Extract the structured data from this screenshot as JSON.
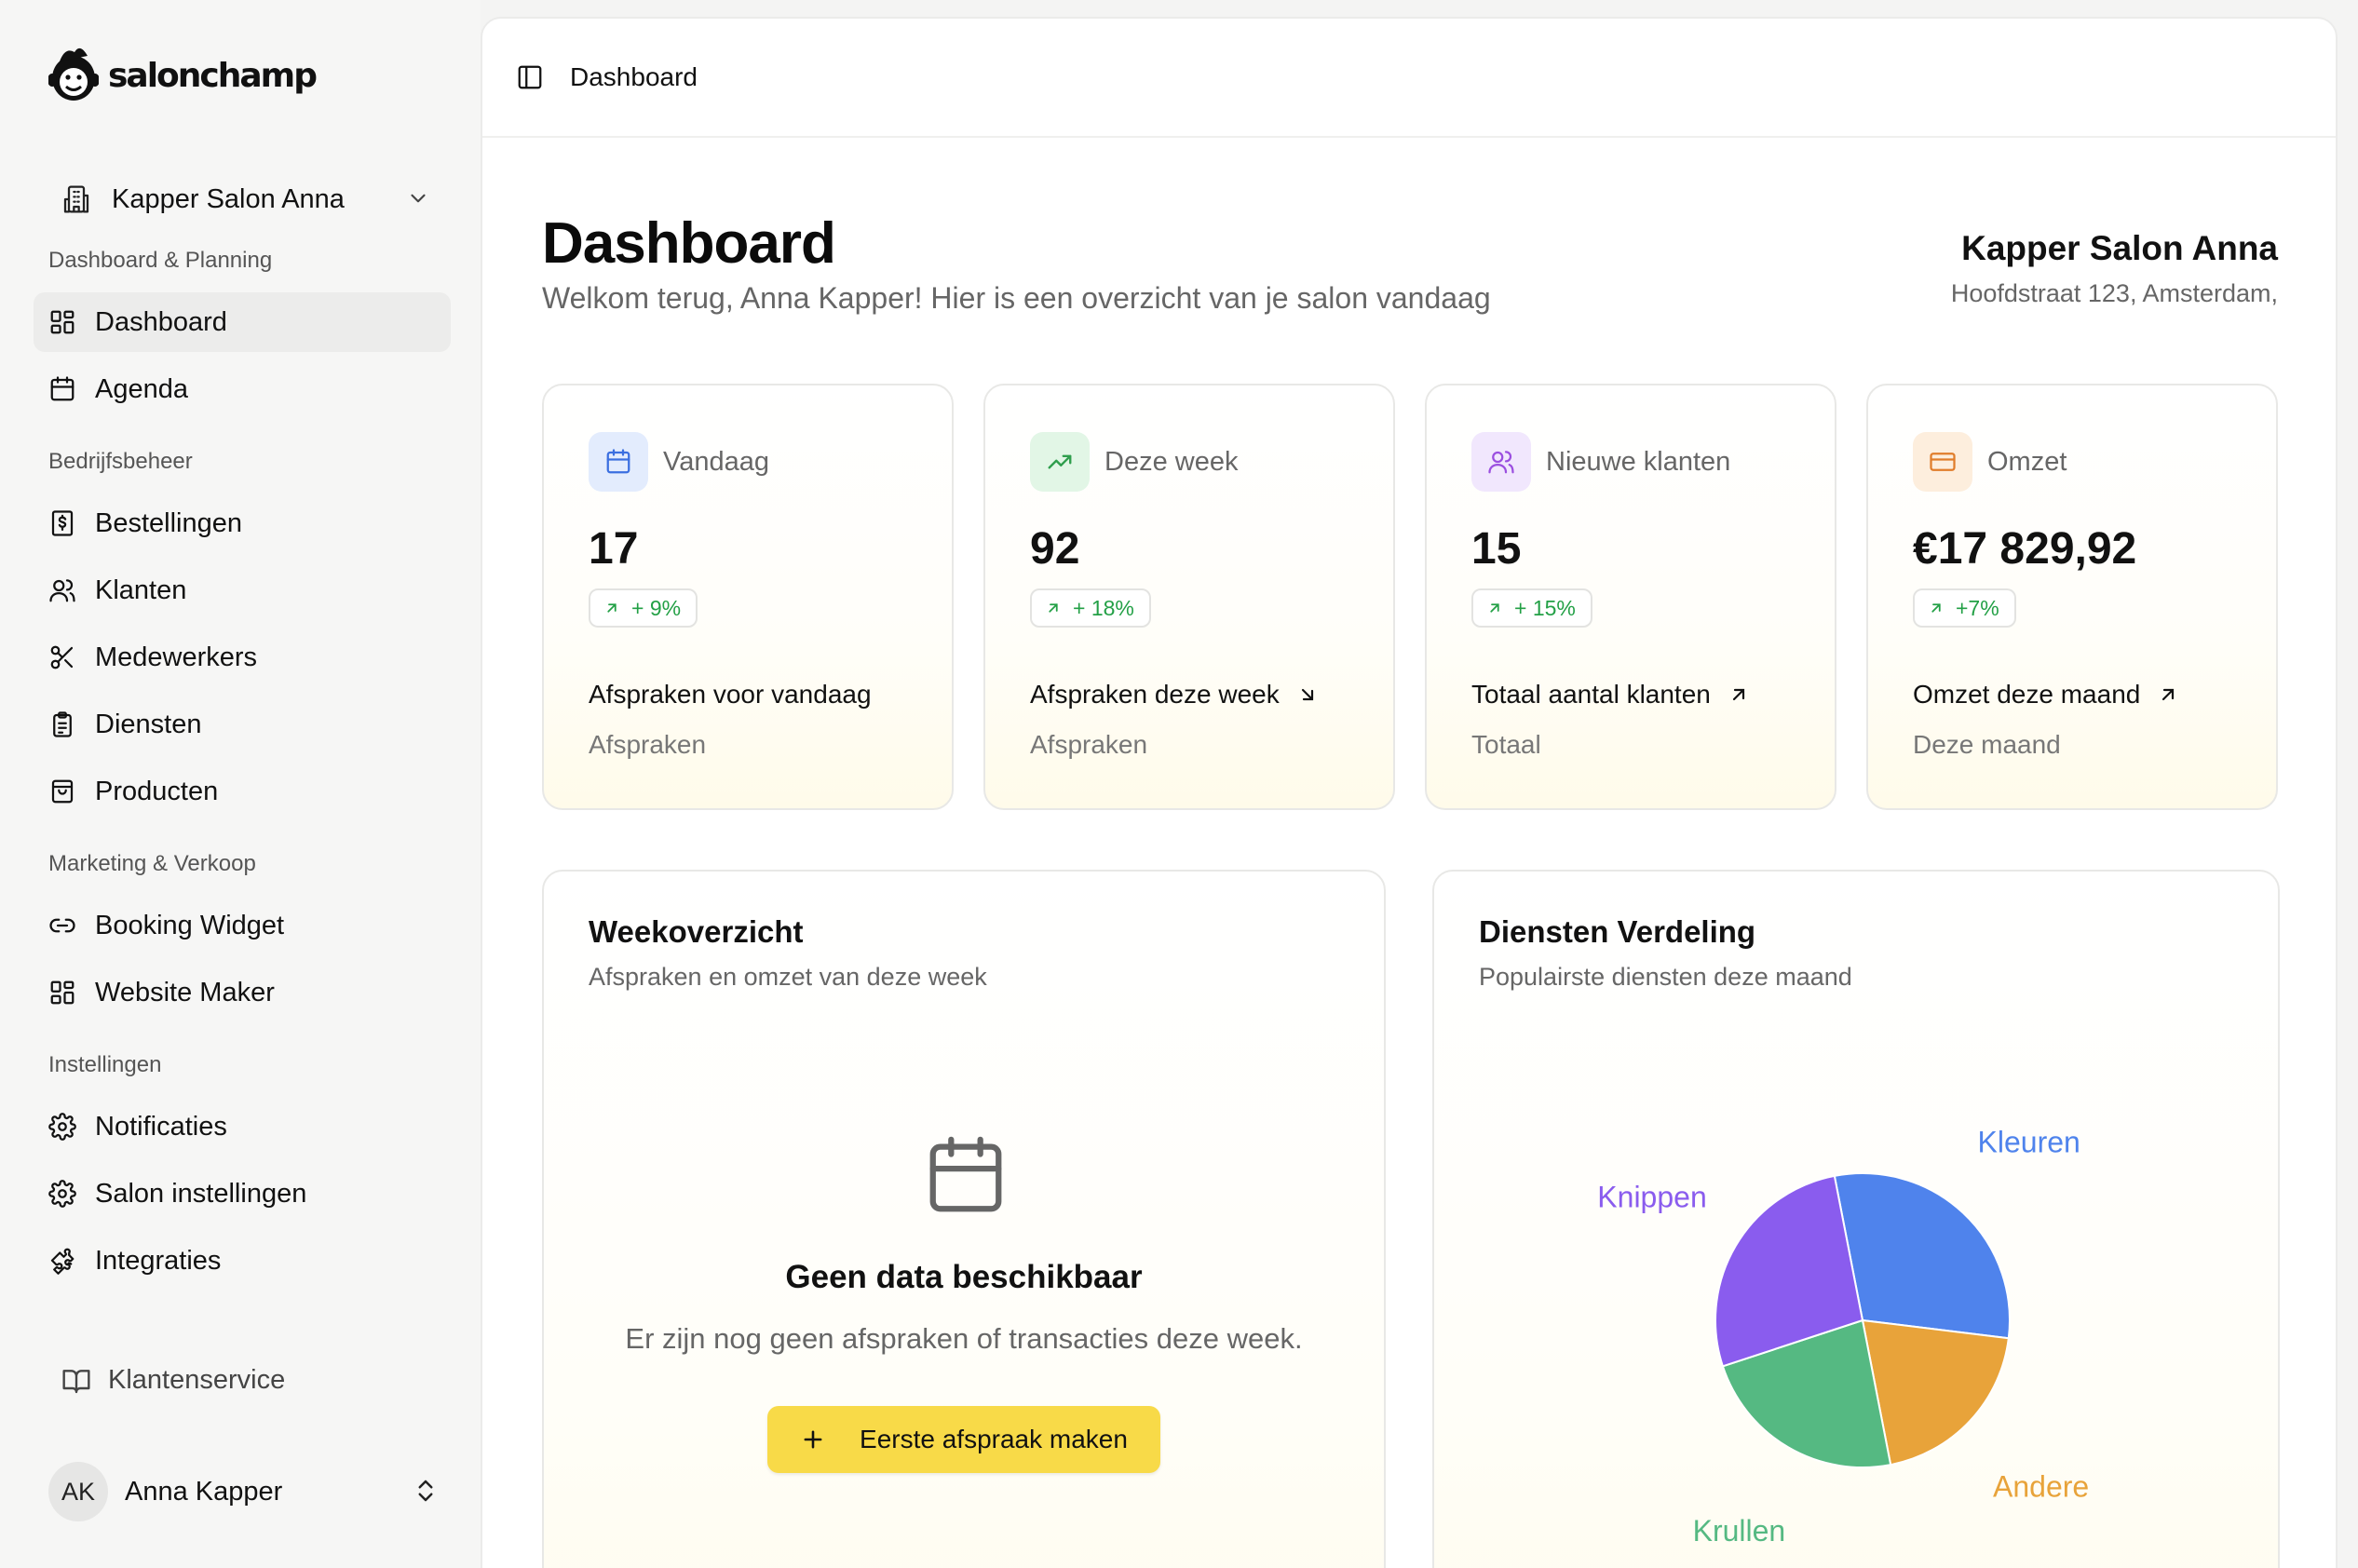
{
  "brand": {
    "name": "salonchamp"
  },
  "sidebar": {
    "salon_switcher": "Kapper Salon Anna",
    "sections": {
      "planning": "Dashboard & Planning",
      "business": "Bedrijfsbeheer",
      "marketing": "Marketing & Verkoop",
      "settings": "Instellingen"
    },
    "items": {
      "dashboard": "Dashboard",
      "agenda": "Agenda",
      "bestellingen": "Bestellingen",
      "klanten": "Klanten",
      "medewerkers": "Medewerkers",
      "diensten": "Diensten",
      "producten": "Producten",
      "booking_widget": "Booking Widget",
      "website_maker": "Website Maker",
      "notificaties": "Notificaties",
      "salon_instellingen": "Salon instellingen",
      "integraties": "Integraties"
    },
    "support": "Klantenservice",
    "user": {
      "initials": "AK",
      "name": "Anna Kapper"
    }
  },
  "topbar": {
    "breadcrumb": "Dashboard"
  },
  "header": {
    "title": "Dashboard",
    "subtitle": "Welkom terug, Anna Kapper! Hier is een overzicht van je salon vandaag",
    "salon_name": "Kapper Salon Anna",
    "salon_address": "Hoofdstraat 123, Amsterdam,"
  },
  "stats": [
    {
      "label": "Vandaag",
      "value": "17",
      "change": "+ 9%",
      "title": "Afspraken voor vandaag",
      "foot": "Afspraken",
      "icon": "calendar-icon",
      "icon_bg": "#e3ecfd",
      "icon_color": "#3b6fe0"
    },
    {
      "label": "Deze week",
      "value": "92",
      "change": "+ 18%",
      "title": "Afspraken deze week",
      "foot": "Afspraken",
      "icon": "trending-up-icon",
      "icon_bg": "#e2f6e6",
      "icon_color": "#2f9e4d"
    },
    {
      "label": "Nieuwe klanten",
      "value": "15",
      "change": "+ 15%",
      "title": "Totaal aantal klanten",
      "foot": "Totaal",
      "icon": "users-icon",
      "icon_bg": "#f1e7fd",
      "icon_color": "#9b4fe0"
    },
    {
      "label": "Omzet",
      "value": "€17 829,92",
      "change": "+7%",
      "title": "Omzet deze maand",
      "foot": "Deze maand",
      "icon": "credit-card-icon",
      "icon_bg": "#fdeedd",
      "icon_color": "#e07d2b"
    }
  ],
  "week_panel": {
    "title": "Weekoverzicht",
    "subtitle": "Afspraken en omzet van deze week",
    "empty_title": "Geen data beschikbaar",
    "empty_text": "Er zijn nog geen afspraken of transacties deze week.",
    "cta": "Eerste afspraak maken"
  },
  "services_panel": {
    "title": "Diensten Verdeling",
    "subtitle": "Populairste diensten deze maand"
  },
  "chart_data": {
    "type": "pie",
    "title": "Diensten Verdeling",
    "categories": [
      "Kleuren",
      "Andere",
      "Krullen",
      "Knippen"
    ],
    "values": [
      30,
      20,
      23,
      27
    ],
    "colors": [
      "#4f83ec",
      "#e8a33a",
      "#55b982",
      "#8a5cee"
    ],
    "start_angle_deg": -11,
    "legend": "labels-around"
  },
  "colors": {
    "accent": "#f8da48",
    "positive": "#23a046"
  }
}
